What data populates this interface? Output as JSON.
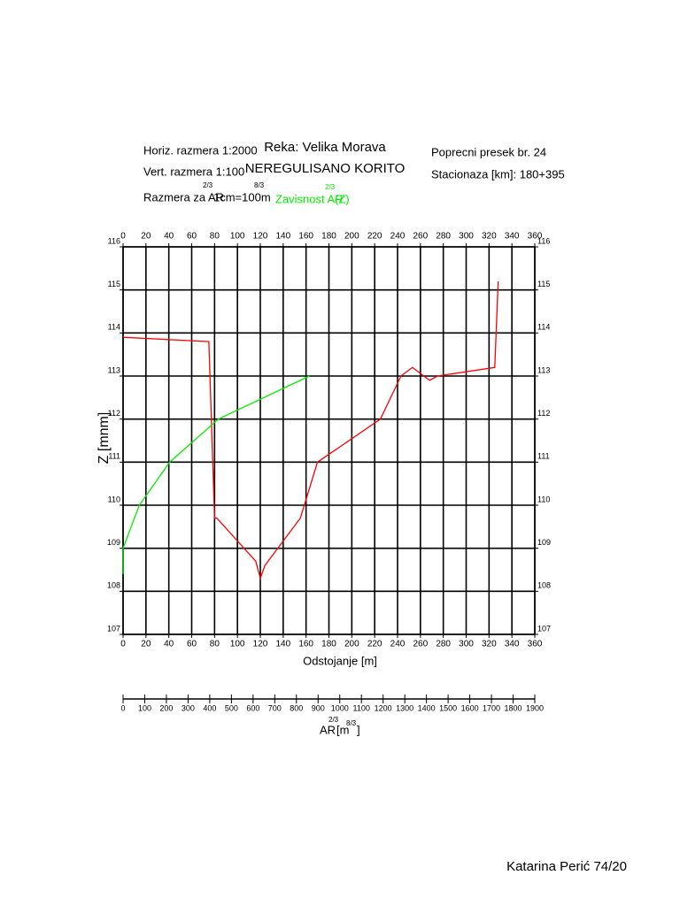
{
  "header": {
    "horiz": "Horiz. razmera  1:2000",
    "vert": "Vert. razmera    1:100",
    "ar_scale": "Razmera za AR",
    "ar_scale_exp": "2/3",
    "ar_scale_unit": "1cm=100m",
    "ar_scale_unit_exp": "8/3",
    "river": "Reka: Velika Morava",
    "state": "NEREGULISANO KORITO",
    "legend": "Zavisnost AR",
    "legend_exp": "2/3",
    "legend_tail": "(Z)",
    "section": "Poprecni presek br. 24",
    "station": "Stacionaza [km]: 180+395"
  },
  "footer": "Katarina Perić 74/20",
  "chart_data": {
    "type": "line",
    "x_label": "Odstojanje [m]",
    "y_label": "Z [mnm]",
    "x2_label": "AR",
    "x2_label_exp": "2/3",
    "x2_label_unit": "[m",
    "x2_label_unit_exp": "8/3",
    "x2_label_end": "]",
    "xlim": [
      0,
      360
    ],
    "xticks": [
      0,
      20,
      40,
      60,
      80,
      100,
      120,
      140,
      160,
      180,
      200,
      220,
      240,
      260,
      280,
      300,
      320,
      340,
      360
    ],
    "ylim": [
      107,
      116
    ],
    "yticks": [
      107,
      108,
      109,
      110,
      111,
      112,
      113,
      114,
      115,
      116
    ],
    "x2lim": [
      0,
      1900
    ],
    "x2ticks": [
      0,
      100,
      200,
      300,
      400,
      500,
      600,
      700,
      800,
      900,
      1000,
      1100,
      1200,
      1300,
      1400,
      1500,
      1600,
      1700,
      1800,
      1900
    ],
    "grid": true,
    "series": [
      {
        "color": "#ff0000",
        "x": [
          0,
          75,
          80,
          82,
          116,
          120,
          124,
          155,
          170,
          225,
          243,
          253,
          268,
          275,
          325,
          328
        ],
        "values": [
          113.9,
          113.8,
          109.7,
          109.7,
          108.7,
          108.3,
          108.6,
          109.7,
          111,
          112,
          113,
          113.2,
          112.9,
          113,
          113.2,
          115.2
        ]
      },
      {
        "color": "#00ee00",
        "axis": "x2",
        "x": [
          0,
          0,
          75,
          215,
          440,
          860
        ],
        "values": [
          108.4,
          109,
          110,
          111,
          112,
          113
        ]
      }
    ]
  }
}
